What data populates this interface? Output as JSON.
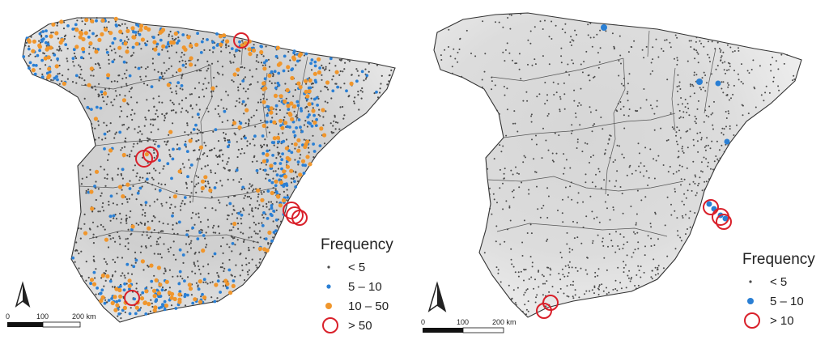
{
  "colors": {
    "small_dot": "#4a4a4a",
    "mid_dot_blue": "#2a7fd4",
    "high_dot_orange": "#f0962c",
    "ring_red": "#d9202a",
    "border": "#333333"
  },
  "legend_title": "Frequency",
  "left_map": {
    "legend": [
      {
        "label": "< 5",
        "symbol": "small-dot"
      },
      {
        "label": "5 – 10",
        "symbol": "blue-dot"
      },
      {
        "label": "10 – 50",
        "symbol": "orange-dot"
      },
      {
        "label": "> 50",
        "symbol": "red-ring"
      }
    ],
    "scale": {
      "ticks": [
        "0",
        "100",
        "200 km"
      ]
    },
    "north_arrow": "north-arrow-icon"
  },
  "right_map": {
    "legend": [
      {
        "label": "< 5",
        "symbol": "small-dot"
      },
      {
        "label": "5 – 10",
        "symbol": "blue-dot"
      },
      {
        "label": "> 10",
        "symbol": "red-ring"
      }
    ],
    "scale": {
      "ticks": [
        "0",
        "100",
        "200 km"
      ]
    },
    "north_arrow": "north-arrow-icon"
  }
}
